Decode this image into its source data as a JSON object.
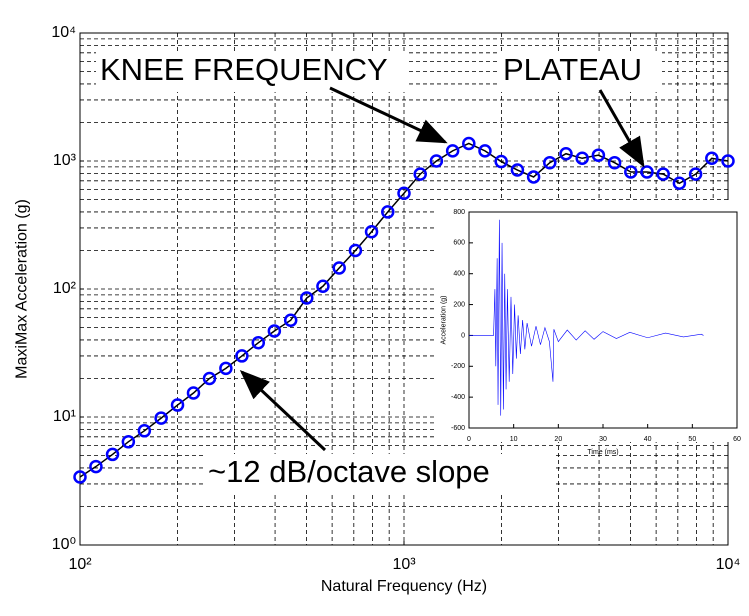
{
  "chart_data": [
    {
      "type": "line",
      "x_label": "Natural Frequency (Hz)",
      "y_label": "MaxiMax Acceleration (g)",
      "xscale": "log",
      "yscale": "log",
      "xlim": [
        100,
        10000
      ],
      "ylim": [
        1,
        10000
      ],
      "xticks": [
        {
          "value": 100,
          "label": "10²"
        },
        {
          "value": 1000,
          "label": "10³"
        },
        {
          "value": 10000,
          "label": "10⁴"
        }
      ],
      "yticks": [
        {
          "value": 1,
          "label": "10⁰"
        },
        {
          "value": 10,
          "label": "10¹"
        },
        {
          "value": 100,
          "label": "10²"
        },
        {
          "value": 1000,
          "label": "10³"
        },
        {
          "value": 10000,
          "label": "10⁴"
        }
      ],
      "grid": true,
      "minor_grid": true,
      "markers": "circle",
      "line_color": "#000000",
      "annotations": [
        "KNEE FREQUENCY",
        "PLATEAU",
        "~12 dB/octave slope"
      ],
      "x": [
        100,
        112,
        126,
        141,
        158,
        178,
        200,
        224,
        251,
        282,
        316,
        355,
        398,
        447,
        501,
        562,
        631,
        708,
        794,
        891,
        1000,
        1122,
        1259,
        1413,
        1585,
        1778,
        1995,
        2239,
        2512,
        2818,
        3162,
        3548,
        3981,
        4467,
        5012,
        5623,
        6310,
        7079,
        7943,
        8913,
        10000
      ],
      "series": [
        {
          "color": "#0000ff",
          "values": [
            3.4,
            4.1,
            5.1,
            6.4,
            7.8,
            9.8,
            12.4,
            15.4,
            20,
            24,
            30,
            38,
            47,
            57,
            85,
            105,
            146,
            200,
            280,
            400,
            560,
            790,
            1000,
            1200,
            1370,
            1200,
            990,
            850,
            750,
            970,
            1140,
            1050,
            1110,
            970,
            820,
            820,
            790,
            670,
            790,
            1050,
            1000
          ]
        }
      ]
    },
    {
      "type": "line",
      "x_label": "Time (ms)",
      "y_label": "Acceleration (g)",
      "xlim": [
        0,
        60
      ],
      "ylim": [
        -600,
        800
      ],
      "xticks": [
        0,
        10,
        20,
        30,
        40,
        50,
        60
      ],
      "yticks": [
        -600,
        -400,
        -200,
        0,
        200,
        400,
        600,
        800
      ],
      "grid": false,
      "x": [
        0,
        5.5,
        5.8,
        6.0,
        6.3,
        6.5,
        6.8,
        7.1,
        7.4,
        7.7,
        8.0,
        8.3,
        8.6,
        9.0,
        9.4,
        9.8,
        10.2,
        10.6,
        11,
        11.5,
        12,
        12.5,
        13,
        14,
        15,
        16,
        17,
        18,
        18.8,
        19,
        20,
        22,
        24,
        26,
        28,
        30,
        33,
        36,
        40,
        44,
        48,
        52,
        52.5
      ],
      "series": [
        {
          "color": "#0000ff",
          "values": [
            0,
            0,
            300,
            -200,
            500,
            -450,
            750,
            -520,
            600,
            -480,
            400,
            -350,
            300,
            -300,
            250,
            -250,
            200,
            -150,
            130,
            -120,
            100,
            -90,
            80,
            -70,
            60,
            -60,
            50,
            -40,
            -300,
            40,
            -40,
            35,
            -30,
            30,
            -25,
            25,
            -20,
            20,
            -15,
            15,
            -10,
            8,
            0
          ]
        }
      ]
    }
  ]
}
